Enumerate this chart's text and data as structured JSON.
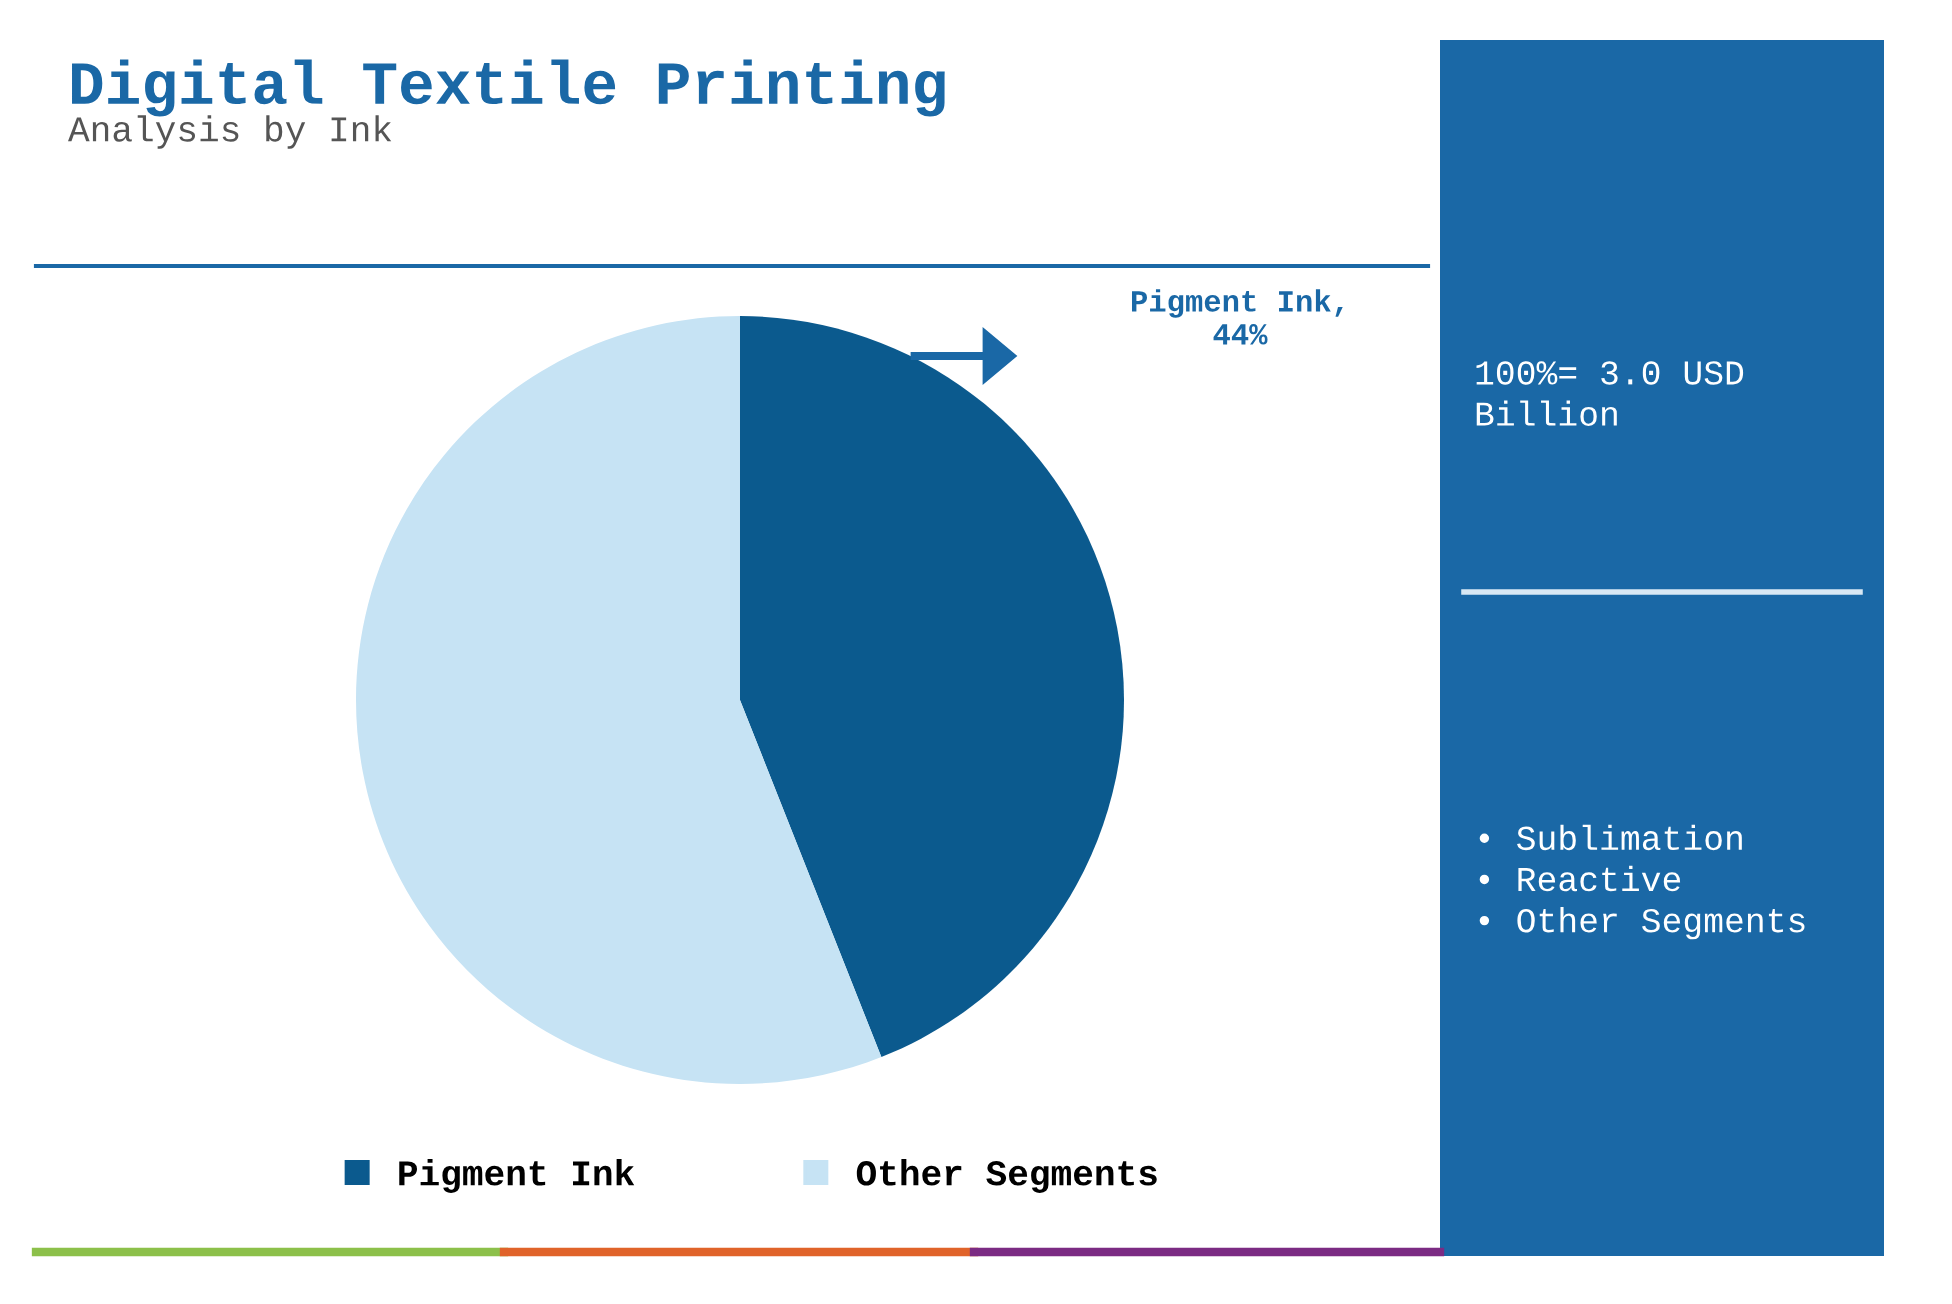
{
  "chart_data": {
    "type": "pie",
    "title": "Digital Textile Printing",
    "subtitle": "Analysis by Ink",
    "categories": [
      "Pigment Ink",
      "Other Segments"
    ],
    "values": [
      44,
      56
    ],
    "colors": [
      "#0b5a8e",
      "#c6e3f4"
    ],
    "value_labels": [
      "Pigment Ink,\n44%",
      null
    ],
    "legend": "bottom",
    "annotations": [
      "100%= 3.0 USD\nBillion",
      "• Sublimation\n• Reactive\n• Other Segments"
    ]
  }
}
